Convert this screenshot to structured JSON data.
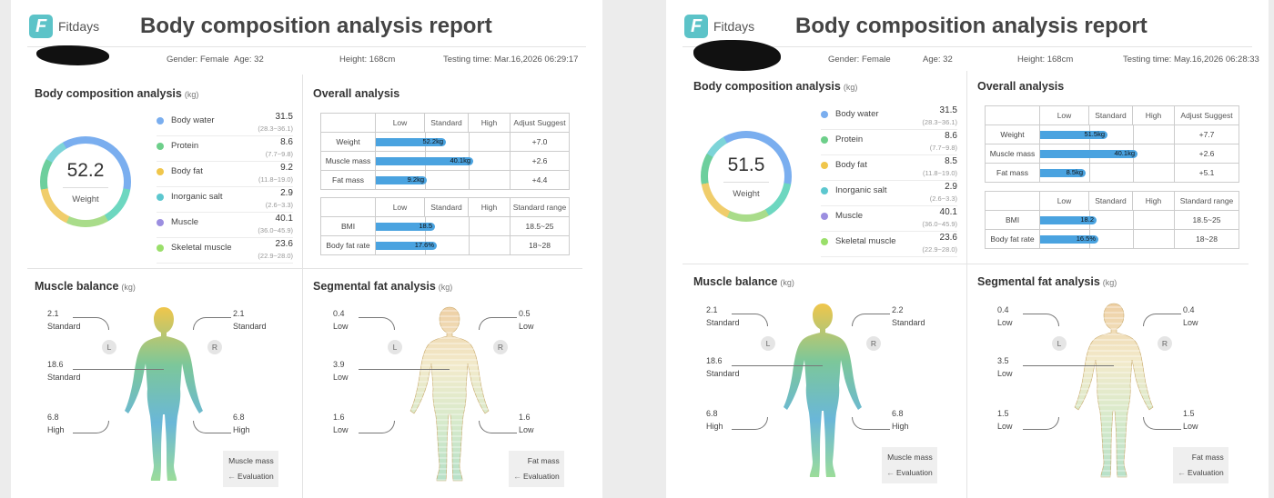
{
  "reports": [
    {
      "brand": "Fitdays",
      "title": "Body composition analysis report",
      "gender": "Gender: Female",
      "age": "Age: 32",
      "height": "Height: 168cm",
      "testing_time": "Testing time: Mar.16,2026 06:29:17",
      "composition": {
        "title": "Body composition analysis",
        "unit": "(kg)",
        "weight_value": "52.2",
        "weight_label": "Weight",
        "items": [
          {
            "name": "Body water",
            "value": "31.5",
            "range": "(28.3~36.1)",
            "color": "#7aaeef"
          },
          {
            "name": "Protein",
            "value": "8.6",
            "range": "(7.7~9.8)",
            "color": "#6dcf8a"
          },
          {
            "name": "Body fat",
            "value": "9.2",
            "range": "(11.8~19.0)",
            "color": "#f0c64b"
          },
          {
            "name": "Inorganic salt",
            "value": "2.9",
            "range": "(2.6~3.3)",
            "color": "#5cc7cf"
          },
          {
            "name": "Muscle",
            "value": "40.1",
            "range": "(36.0~45.9)",
            "color": "#9b8ee0"
          },
          {
            "name": "Skeletal muscle",
            "value": "23.6",
            "range": "(22.9~28.0)",
            "color": "#9adf6a"
          }
        ]
      },
      "overall": {
        "title": "Overall analysis",
        "headers": [
          "",
          "Low",
          "Standard",
          "High",
          "Adjust Suggest"
        ],
        "rows": [
          {
            "label": "Weight",
            "bar": "52.2kg",
            "level": 0.52,
            "suggest": "+7.0"
          },
          {
            "label": "Muscle mass",
            "bar": "40.1kg",
            "level": 0.72,
            "suggest": "+2.6"
          },
          {
            "label": "Fat mass",
            "bar": "9.2kg",
            "level": 0.38,
            "suggest": "+4.4"
          }
        ],
        "headers2": [
          "",
          "Low",
          "Standard",
          "High",
          "Standard range"
        ],
        "rows2": [
          {
            "label": "BMI",
            "bar": "18.5",
            "level": 0.44,
            "range": "18.5~25"
          },
          {
            "label": "Body fat rate",
            "bar": "17.6%",
            "level": 0.45,
            "range": "18~28"
          }
        ]
      },
      "muscle": {
        "title": "Muscle balance",
        "unit": "(kg)",
        "left_arm": "2.1",
        "left_arm_eval": "Standard",
        "right_arm": "2.1",
        "right_arm_eval": "Standard",
        "trunk": "18.6",
        "trunk_eval": "Standard",
        "left_leg": "6.8",
        "left_leg_eval": "High",
        "right_leg": "6.8",
        "right_leg_eval": "High",
        "L": "L",
        "R": "R",
        "eval_top": "Muscle mass",
        "eval_bottom": "Evaluation"
      },
      "fat": {
        "title": "Segmental fat analysis",
        "unit": "(kg)",
        "left_arm": "0.4",
        "left_arm_eval": "Low",
        "right_arm": "0.5",
        "right_arm_eval": "Low",
        "trunk": "3.9",
        "trunk_eval": "Low",
        "left_leg": "1.6",
        "left_leg_eval": "Low",
        "right_leg": "1.6",
        "right_leg_eval": "Low",
        "L": "L",
        "R": "R",
        "eval_top": "Fat mass",
        "eval_bottom": "Evaluation"
      }
    },
    {
      "brand": "Fitdays",
      "title": "Body composition analysis report",
      "gender": "Gender: Female",
      "age": "Age: 32",
      "height": "Height: 168cm",
      "testing_time": "Testing time: May.16,2026 06:28:33",
      "composition": {
        "title": "Body composition analysis",
        "unit": "(kg)",
        "weight_value": "51.5",
        "weight_label": "Weight",
        "items": [
          {
            "name": "Body water",
            "value": "31.5",
            "range": "(28.3~36.1)",
            "color": "#7aaeef"
          },
          {
            "name": "Protein",
            "value": "8.6",
            "range": "(7.7~9.8)",
            "color": "#6dcf8a"
          },
          {
            "name": "Body fat",
            "value": "8.5",
            "range": "(11.8~19.0)",
            "color": "#f0c64b"
          },
          {
            "name": "Inorganic salt",
            "value": "2.9",
            "range": "(2.6~3.3)",
            "color": "#5cc7cf"
          },
          {
            "name": "Muscle",
            "value": "40.1",
            "range": "(36.0~45.9)",
            "color": "#9b8ee0"
          },
          {
            "name": "Skeletal muscle",
            "value": "23.6",
            "range": "(22.9~28.0)",
            "color": "#9adf6a"
          }
        ]
      },
      "overall": {
        "title": "Overall analysis",
        "headers": [
          "",
          "Low",
          "Standard",
          "High",
          "Adjust Suggest"
        ],
        "rows": [
          {
            "label": "Weight",
            "bar": "51.5kg",
            "level": 0.5,
            "suggest": "+7.7"
          },
          {
            "label": "Muscle mass",
            "bar": "40.1kg",
            "level": 0.72,
            "suggest": "+2.6"
          },
          {
            "label": "Fat mass",
            "bar": "8.5kg",
            "level": 0.34,
            "suggest": "+5.1"
          }
        ],
        "headers2": [
          "",
          "Low",
          "Standard",
          "High",
          "Standard range"
        ],
        "rows2": [
          {
            "label": "BMI",
            "bar": "18.2",
            "level": 0.42,
            "range": "18.5~25"
          },
          {
            "label": "Body fat rate",
            "bar": "16.5%",
            "level": 0.43,
            "range": "18~28"
          }
        ]
      },
      "muscle": {
        "title": "Muscle balance",
        "unit": "(kg)",
        "left_arm": "2.1",
        "left_arm_eval": "Standard",
        "right_arm": "2.2",
        "right_arm_eval": "Standard",
        "trunk": "18.6",
        "trunk_eval": "Standard",
        "left_leg": "6.8",
        "left_leg_eval": "High",
        "right_leg": "6.8",
        "right_leg_eval": "High",
        "L": "L",
        "R": "R",
        "eval_top": "Muscle mass",
        "eval_bottom": "Evaluation"
      },
      "fat": {
        "title": "Segmental fat analysis",
        "unit": "(kg)",
        "left_arm": "0.4",
        "left_arm_eval": "Low",
        "right_arm": "0.4",
        "right_arm_eval": "Low",
        "trunk": "3.5",
        "trunk_eval": "Low",
        "left_leg": "1.5",
        "left_leg_eval": "Low",
        "right_leg": "1.5",
        "right_leg_eval": "Low",
        "L": "L",
        "R": "R",
        "eval_top": "Fat mass",
        "eval_bottom": "Evaluation"
      }
    }
  ]
}
